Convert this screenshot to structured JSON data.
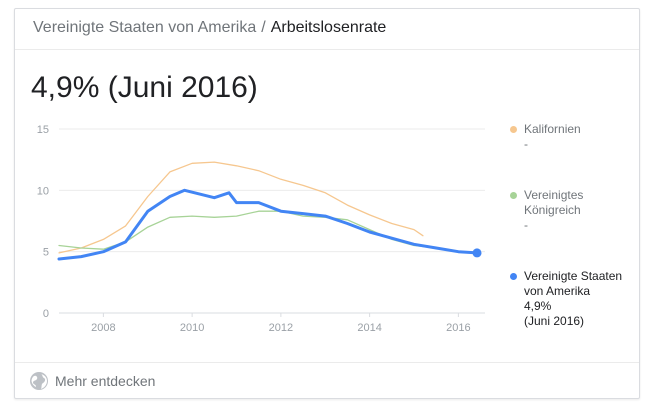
{
  "breadcrumb": {
    "country": "Vereinigte Staaten von Amerika",
    "separator": "/",
    "metric": "Arbeitslosenrate"
  },
  "headline": "4,9% (Juni 2016)",
  "footer": {
    "more_label": "Mehr entdecken",
    "icon": "globe-icon"
  },
  "colors": {
    "us": "#4285f4",
    "california": "#f6c78f",
    "uk": "#a7d397",
    "grid": "#ebebeb",
    "axis_text": "#9aa0a6"
  },
  "legend": [
    {
      "name": "Kalifornien",
      "value": "-",
      "date": "",
      "color": "#f6c78f",
      "active": false
    },
    {
      "name": "Vereinigtes Königreich",
      "value": "-",
      "date": "",
      "color": "#a7d397",
      "active": false
    },
    {
      "name": "Vereinigte Staaten von Amerika",
      "value": "4,9%",
      "date": "(Juni 2016)",
      "color": "#4285f4",
      "active": true
    }
  ],
  "chart_data": {
    "type": "line",
    "title": "",
    "xlabel": "",
    "ylabel": "",
    "ylim": [
      0,
      15
    ],
    "xlim": [
      2007,
      2016.6
    ],
    "y_ticks": [
      0,
      5,
      10,
      15
    ],
    "x_ticks": [
      2008,
      2010,
      2012,
      2014,
      2016
    ],
    "grid": true,
    "legend_position": "right",
    "series": [
      {
        "name": "Kalifornien",
        "color": "#f6c78f",
        "x": [
          2007.0,
          2007.5,
          2008.0,
          2008.5,
          2009.0,
          2009.5,
          2010.0,
          2010.5,
          2011.0,
          2011.5,
          2012.0,
          2012.5,
          2013.0,
          2013.5,
          2014.0,
          2014.5,
          2015.0,
          2015.2
        ],
        "y": [
          4.9,
          5.3,
          6.0,
          7.1,
          9.5,
          11.5,
          12.2,
          12.3,
          12.0,
          11.6,
          10.9,
          10.4,
          9.8,
          8.8,
          8.0,
          7.3,
          6.8,
          6.3
        ]
      },
      {
        "name": "Vereinigtes Königreich",
        "color": "#a7d397",
        "x": [
          2007.0,
          2007.5,
          2008.0,
          2008.5,
          2009.0,
          2009.5,
          2010.0,
          2010.5,
          2011.0,
          2011.5,
          2012.0,
          2012.5,
          2013.0,
          2013.5,
          2014.0,
          2014.5,
          2015.0,
          2015.5
        ],
        "y": [
          5.5,
          5.3,
          5.2,
          5.8,
          7.0,
          7.8,
          7.9,
          7.8,
          7.9,
          8.3,
          8.3,
          7.9,
          7.8,
          7.6,
          6.8,
          6.0,
          5.5,
          5.3
        ]
      },
      {
        "name": "Vereinigte Staaten von Amerika",
        "color": "#4285f4",
        "x": [
          2007.0,
          2007.5,
          2008.0,
          2008.5,
          2009.0,
          2009.5,
          2009.83,
          2010.5,
          2010.83,
          2011.0,
          2011.5,
          2012.0,
          2012.5,
          2013.0,
          2013.5,
          2014.0,
          2014.5,
          2015.0,
          2015.5,
          2016.0,
          2016.42
        ],
        "y": [
          4.4,
          4.6,
          5.0,
          5.8,
          8.3,
          9.5,
          10.0,
          9.4,
          9.8,
          9.0,
          9.0,
          8.3,
          8.1,
          7.9,
          7.3,
          6.6,
          6.1,
          5.6,
          5.3,
          5.0,
          4.9
        ]
      }
    ]
  }
}
